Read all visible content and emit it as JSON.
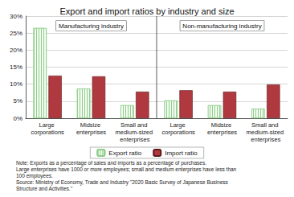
{
  "chart_data": {
    "type": "bar",
    "title": "Export and import ratios by industry and size",
    "categories": [
      "Large corporations",
      "Midsize enterprises",
      "Small and medium-sized enterprises",
      "Large corporations",
      "Midsize enterprises",
      "Small and medium-sized enterprises"
    ],
    "series": [
      {
        "name": "Export ratio",
        "color": "#8fce8a",
        "values": [
          26.5,
          8.7,
          3.8,
          5.2,
          3.8,
          2.8
        ]
      },
      {
        "name": "Import ratio",
        "color": "#b0393f",
        "values": [
          12.5,
          12.3,
          7.8,
          8.2,
          7.8,
          9.9
        ]
      }
    ],
    "ylim": [
      0,
      30
    ],
    "yticks": [
      {
        "value": 0,
        "label": "0%"
      },
      {
        "value": 5,
        "label": "5%"
      },
      {
        "value": 10,
        "label": "10%"
      },
      {
        "value": 15,
        "label": "15%"
      },
      {
        "value": 20,
        "label": "20%"
      },
      {
        "value": 25,
        "label": "25%"
      },
      {
        "value": 30,
        "label": "30%"
      }
    ],
    "grid": true,
    "legend": "bottom",
    "annotations": [
      "Manufacturing industry",
      "Non-manufacturing industry"
    ],
    "notes": [
      "Note: Exports as a percentage of sales and imports as a percentage of purchases.",
      "Large enterprises have 1000 or more employees; small and medium enterprises have less than 100 employees.",
      "Source: Ministry of Economy, Trade and Industry \"2020 Basic Survey of Japanese Business Structure and Activities.\""
    ]
  }
}
